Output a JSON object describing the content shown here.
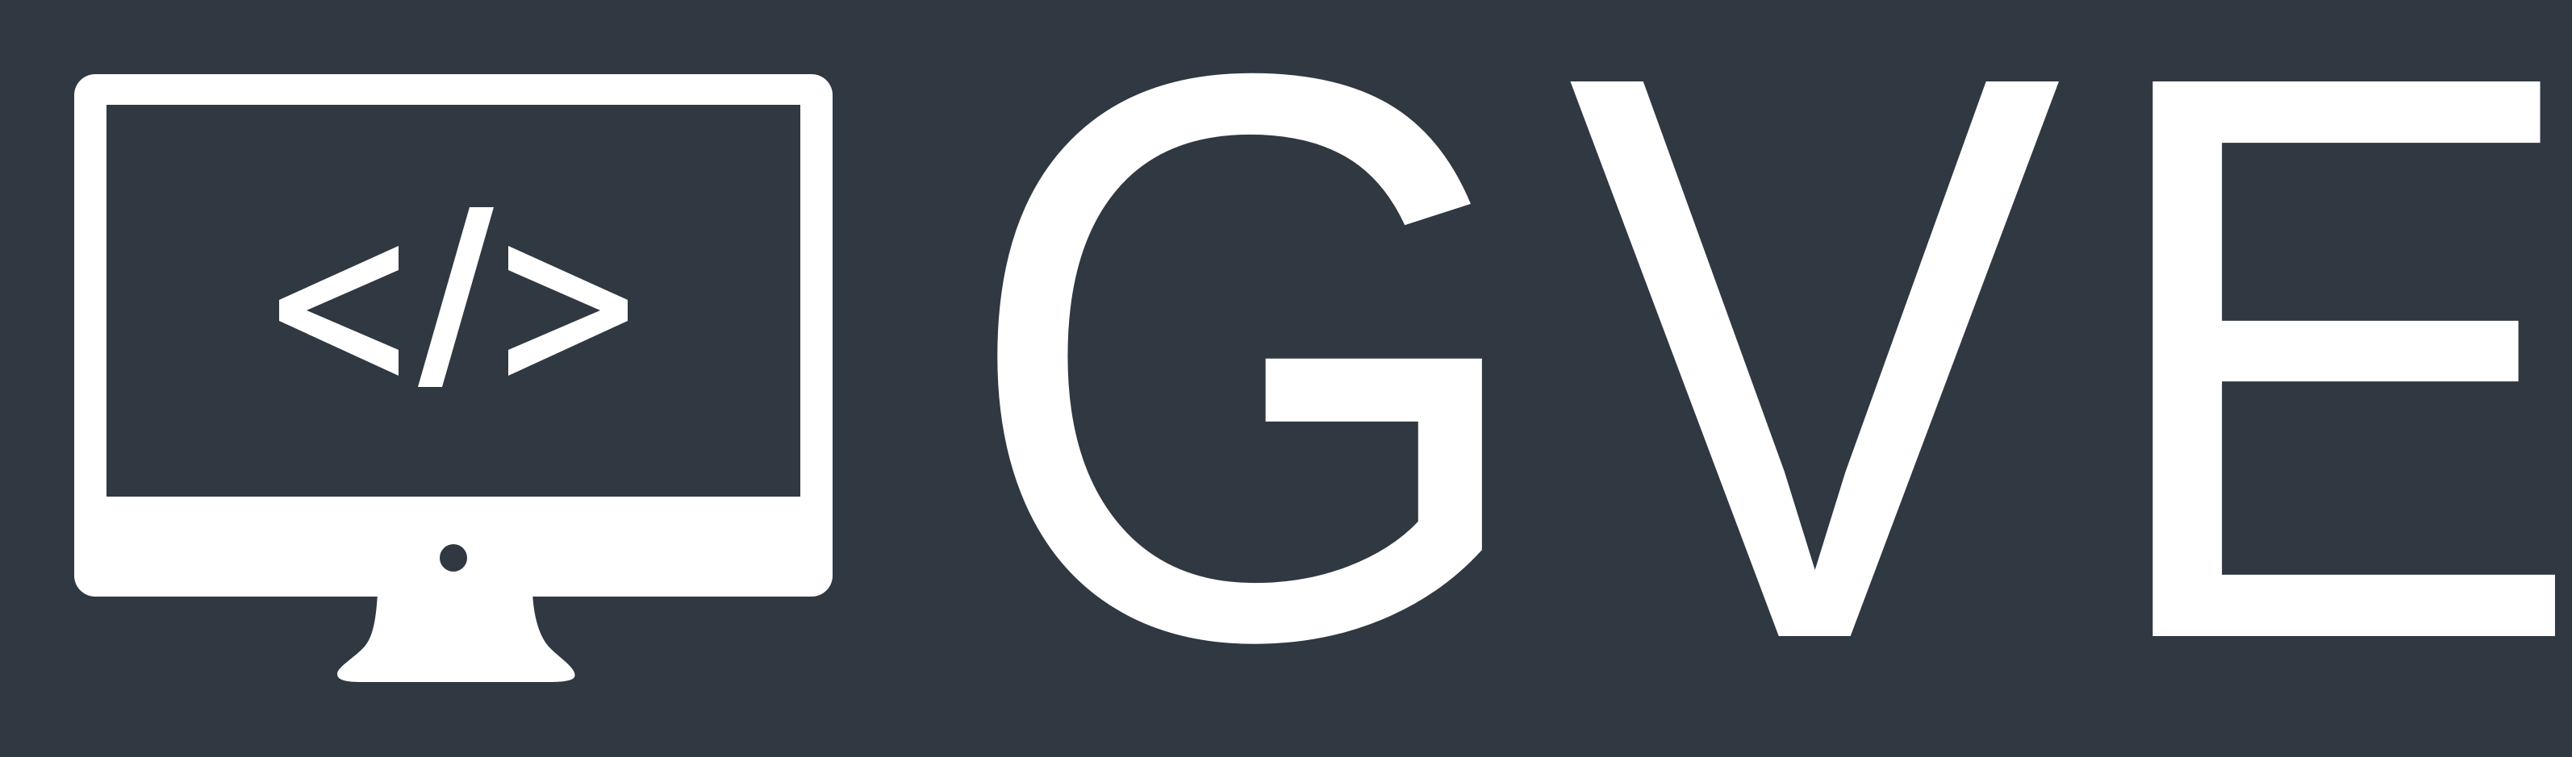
{
  "logo": {
    "icon": "monitor-code-icon",
    "wordmark": "GVE",
    "code_symbol": "</>",
    "colors": {
      "background": "#303842",
      "foreground": "#ffffff"
    }
  }
}
